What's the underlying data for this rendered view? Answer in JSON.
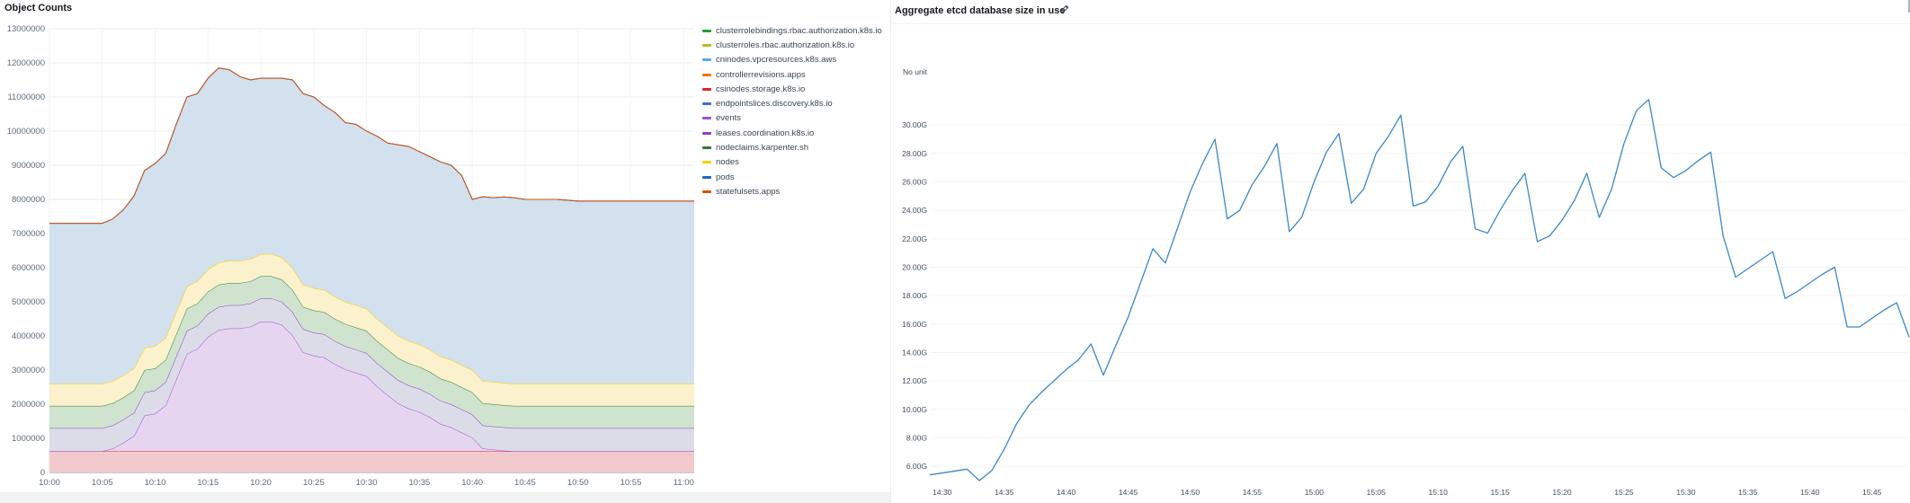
{
  "left": {
    "title": "Object Counts",
    "legend": [
      {
        "label": "clusterrolebindings.rbac.authorization.k8s.io",
        "color": "#1e9e3a"
      },
      {
        "label": "clusterroles.rbac.authorization.k8s.io",
        "color": "#c7b51d"
      },
      {
        "label": "cninodes.vpcresources.k8s.aws",
        "color": "#56a8f0"
      },
      {
        "label": "controllerrevisions.apps",
        "color": "#f2750c"
      },
      {
        "label": "csinodes.storage.k8s.io",
        "color": "#e0262f"
      },
      {
        "label": "endpointslices.discovery.k8s.io",
        "color": "#3b6fd6"
      },
      {
        "label": "events",
        "color": "#9a50d6"
      },
      {
        "label": "leases.coordination.k8s.io",
        "color": "#8e3fc2"
      },
      {
        "label": "nodeclaims.karpenter.sh",
        "color": "#2e7d32"
      },
      {
        "label": "nodes",
        "color": "#f3d000"
      },
      {
        "label": "pods",
        "color": "#1f63c9"
      },
      {
        "label": "statefulsets.apps",
        "color": "#d1520b"
      }
    ]
  },
  "right": {
    "title": "Aggregate etcd database size in use",
    "unit_label": "No unit"
  },
  "chart_data": [
    {
      "type": "area",
      "title": "Object Counts",
      "stacked": true,
      "xlim": [
        "10:00",
        "11:01"
      ],
      "ylim": [
        0,
        13000000
      ],
      "y_ticks": [
        0,
        1000000,
        2000000,
        3000000,
        4000000,
        5000000,
        6000000,
        7000000,
        8000000,
        9000000,
        10000000,
        11000000,
        12000000,
        13000000
      ],
      "x_ticks": [
        "10:00",
        "10:05",
        "10:10",
        "10:15",
        "10:20",
        "10:25",
        "10:30",
        "10:35",
        "10:40",
        "10:45",
        "10:50",
        "10:55",
        "11:00"
      ],
      "x": [
        "10:00",
        "10:02",
        "10:04",
        "10:05",
        "10:06",
        "10:07",
        "10:08",
        "10:09",
        "10:10",
        "10:11",
        "10:12",
        "10:13",
        "10:14",
        "10:15",
        "10:16",
        "10:17",
        "10:18",
        "10:19",
        "10:20",
        "10:21",
        "10:22",
        "10:23",
        "10:24",
        "10:25",
        "10:26",
        "10:27",
        "10:28",
        "10:29",
        "10:30",
        "10:31",
        "10:32",
        "10:33",
        "10:34",
        "10:35",
        "10:36",
        "10:37",
        "10:38",
        "10:39",
        "10:40",
        "10:41",
        "10:42",
        "10:43",
        "10:44",
        "10:45",
        "10:46",
        "10:48",
        "10:50",
        "10:55",
        "11:00",
        "11:01"
      ],
      "series": [
        {
          "name": "csinodes.storage.k8s.io",
          "color": "#f2c9cc",
          "line": "#e0262f",
          "values": [
            620000,
            620000,
            620000,
            620000,
            620000,
            620000,
            620000,
            620000,
            620000,
            620000,
            620000,
            620000,
            620000,
            620000,
            620000,
            620000,
            620000,
            620000,
            620000,
            620000,
            620000,
            620000,
            620000,
            620000,
            620000,
            620000,
            620000,
            620000,
            620000,
            620000,
            620000,
            620000,
            620000,
            620000,
            620000,
            620000,
            620000,
            620000,
            620000,
            620000,
            620000,
            620000,
            620000,
            620000,
            620000,
            620000,
            620000,
            620000,
            620000,
            620000
          ]
        },
        {
          "name": "events",
          "color": "#e6d5f0",
          "line": "#9a50d6",
          "values": [
            0,
            0,
            0,
            0,
            80000,
            250000,
            450000,
            1050000,
            1100000,
            1350000,
            2100000,
            2850000,
            3000000,
            3350000,
            3550000,
            3600000,
            3600000,
            3650000,
            3800000,
            3800000,
            3700000,
            3400000,
            2900000,
            2800000,
            2750000,
            2550000,
            2400000,
            2300000,
            2200000,
            1900000,
            1650000,
            1400000,
            1250000,
            1150000,
            1000000,
            800000,
            700000,
            550000,
            400000,
            80000,
            50000,
            20000,
            0,
            0,
            0,
            0,
            0,
            0,
            0,
            0
          ]
        },
        {
          "name": "leases.coordination.k8s.io",
          "color": "#dcdce9",
          "line": "#8e3fc2",
          "values": [
            680000,
            680000,
            680000,
            680000,
            680000,
            680000,
            680000,
            680000,
            680000,
            680000,
            680000,
            680000,
            680000,
            680000,
            680000,
            680000,
            680000,
            680000,
            680000,
            680000,
            680000,
            680000,
            680000,
            680000,
            680000,
            680000,
            680000,
            680000,
            680000,
            680000,
            680000,
            680000,
            680000,
            680000,
            680000,
            680000,
            680000,
            680000,
            680000,
            680000,
            680000,
            680000,
            680000,
            680000,
            680000,
            680000,
            680000,
            680000,
            680000,
            680000
          ]
        },
        {
          "name": "nodeclaims.karpenter.sh",
          "color": "#cfe3cf",
          "line": "#2e7d32",
          "values": [
            650000,
            650000,
            650000,
            650000,
            650000,
            650000,
            650000,
            650000,
            650000,
            650000,
            650000,
            650000,
            650000,
            650000,
            650000,
            650000,
            650000,
            650000,
            650000,
            650000,
            650000,
            650000,
            650000,
            650000,
            650000,
            650000,
            650000,
            650000,
            650000,
            650000,
            650000,
            650000,
            650000,
            650000,
            650000,
            650000,
            650000,
            650000,
            650000,
            650000,
            650000,
            650000,
            650000,
            650000,
            650000,
            650000,
            650000,
            650000,
            650000,
            650000
          ]
        },
        {
          "name": "nodes",
          "color": "#fbf1cc",
          "line": "#f3d000",
          "values": [
            650000,
            650000,
            650000,
            650000,
            650000,
            650000,
            650000,
            650000,
            650000,
            650000,
            650000,
            650000,
            650000,
            650000,
            650000,
            650000,
            650000,
            650000,
            650000,
            650000,
            650000,
            650000,
            650000,
            650000,
            650000,
            650000,
            650000,
            650000,
            650000,
            650000,
            650000,
            650000,
            650000,
            650000,
            650000,
            650000,
            650000,
            650000,
            650000,
            650000,
            650000,
            650000,
            650000,
            650000,
            650000,
            650000,
            650000,
            650000,
            650000,
            650000
          ]
        },
        {
          "name": "pods",
          "color": "#d3e0ee",
          "line": "#1f63c9",
          "values": [
            4700000,
            4700000,
            4700000,
            4700000,
            4750000,
            4850000,
            5050000,
            5200000,
            5350000,
            5400000,
            5500000,
            5550000,
            5500000,
            5600000,
            5700000,
            5600000,
            5400000,
            5250000,
            5150000,
            5150000,
            5250000,
            5500000,
            5600000,
            5600000,
            5400000,
            5400000,
            5250000,
            5300000,
            5200000,
            5350000,
            5400000,
            5600000,
            5700000,
            5650000,
            5650000,
            5700000,
            5700000,
            5550000,
            5000000,
            5400000,
            5400000,
            5450000,
            5450000,
            5400000,
            5400000,
            5400000,
            5350000,
            5350000,
            5350000,
            5350000
          ]
        },
        {
          "name": "statefulsets.apps",
          "color": "#f6d9c4",
          "line": "#d1520b",
          "values": [
            0,
            0,
            0,
            0,
            0,
            0,
            0,
            0,
            0,
            0,
            0,
            0,
            0,
            0,
            0,
            0,
            0,
            0,
            0,
            0,
            0,
            0,
            0,
            0,
            0,
            0,
            0,
            0,
            0,
            0,
            0,
            0,
            0,
            0,
            0,
            0,
            0,
            0,
            0,
            0,
            0,
            0,
            0,
            0,
            0,
            0,
            0,
            0,
            0,
            0
          ]
        }
      ]
    },
    {
      "type": "line",
      "title": "Aggregate etcd database size in use",
      "ylabel": "No unit",
      "ylim": [
        5.0,
        35.0
      ],
      "xlim": [
        "14:29",
        "15:48"
      ],
      "y_ticks": [
        "6.00G",
        "8.00G",
        "10.00G",
        "12.00G",
        "14.00G",
        "16.00G",
        "18.00G",
        "20.00G",
        "22.00G",
        "24.00G",
        "26.00G",
        "28.00G",
        "30.00G"
      ],
      "x_ticks": [
        "14:30",
        "14:35",
        "14:40",
        "14:45",
        "14:50",
        "14:55",
        "15:00",
        "15:05",
        "15:10",
        "15:15",
        "15:20",
        "15:25",
        "15:30",
        "15:35",
        "15:40",
        "15:45"
      ],
      "series": [
        {
          "name": "",
          "color": "#3a87c8",
          "x": [
            "14:29",
            "14:32",
            "14:33",
            "14:34",
            "14:35",
            "14:36",
            "14:37",
            "14:38",
            "14:39",
            "14:40",
            "14:41",
            "14:42",
            "14:43",
            "14:44",
            "14:45",
            "14:46",
            "14:47",
            "14:48",
            "14:49",
            "14:50",
            "14:51",
            "14:52",
            "14:53",
            "14:54",
            "14:55",
            "14:56",
            "14:57",
            "14:58",
            "14:59",
            "15:00",
            "15:01",
            "15:02",
            "15:03",
            "15:04",
            "15:05",
            "15:06",
            "15:07",
            "15:08",
            "15:09",
            "15:10",
            "15:11",
            "15:12",
            "15:13",
            "15:14",
            "15:15",
            "15:16",
            "15:17",
            "15:18",
            "15:19",
            "15:20",
            "15:21",
            "15:22",
            "15:23",
            "15:24",
            "15:25",
            "15:26",
            "15:27",
            "15:28",
            "15:29",
            "15:30",
            "15:31",
            "15:32",
            "15:33",
            "15:34",
            "15:35",
            "15:36",
            "15:37",
            "15:38",
            "15:39",
            "15:40",
            "15:41",
            "15:42",
            "15:43",
            "15:44",
            "15:45",
            "15:46",
            "15:47",
            "15:48"
          ],
          "y": [
            5.4,
            5.8,
            5.0,
            5.7,
            7.2,
            9.0,
            10.3,
            11.2,
            12.0,
            12.8,
            13.5,
            14.6,
            12.4,
            14.5,
            16.5,
            18.9,
            21.3,
            20.3,
            22.8,
            25.3,
            27.3,
            29.0,
            23.4,
            24.0,
            25.8,
            27.1,
            28.7,
            22.5,
            23.5,
            26.0,
            28.1,
            29.4,
            24.5,
            25.5,
            28.0,
            29.2,
            30.7,
            24.3,
            24.6,
            25.7,
            27.4,
            28.5,
            22.7,
            22.4,
            24.0,
            25.4,
            26.6,
            21.8,
            22.2,
            23.3,
            24.7,
            26.6,
            23.5,
            25.5,
            28.7,
            31.0,
            31.8,
            27.0,
            26.3,
            26.8,
            27.5,
            28.1,
            22.2,
            19.3,
            19.9,
            20.5,
            21.1,
            17.8,
            18.3,
            18.9,
            19.5,
            20.0,
            15.8,
            15.8,
            16.4,
            17.0,
            17.5,
            15.1
          ]
        }
      ]
    }
  ]
}
